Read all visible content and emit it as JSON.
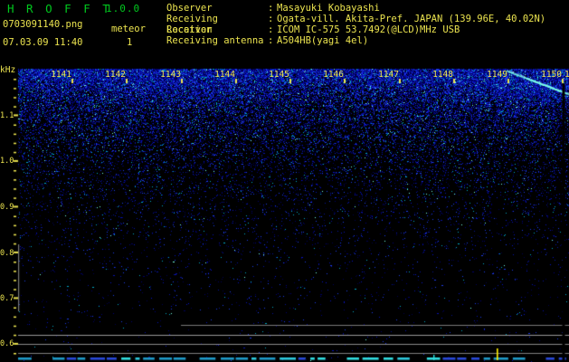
{
  "header": {
    "app_title": "H R O F F T",
    "app_version": "1.0.0",
    "filename": "0703091140.png",
    "mode": "meteor",
    "datetime": "07.03.09 11:40",
    "count": "1",
    "info_rows": [
      {
        "label": "Observer",
        "sep": ":",
        "value": "Masayuki Kobayashi"
      },
      {
        "label": "Receiving Location",
        "sep": ":",
        "value": "Ogata-vill. Akita-Pref. JAPAN (139.96E, 40.02N)"
      },
      {
        "label": "Receiver",
        "sep": ":",
        "value": "ICOM IC-575 53.7492(@LCD)MHz USB"
      },
      {
        "label": "Receiving antenna",
        "sep": ":",
        "value": "A504HB(yagi 4el)"
      }
    ]
  },
  "plot": {
    "freq_axis": {
      "unit": "kHz",
      "labels": [
        "1.1",
        "1.0",
        "0.9",
        "0.8",
        "0.7",
        "0.6"
      ]
    },
    "time_axis": {
      "labels": [
        "1141",
        "1142",
        "1143",
        "1144",
        "1145",
        "1146",
        "1147",
        "1148",
        "1149",
        "1150"
      ],
      "partial_next_label": "1"
    },
    "colors": {
      "text_yellow": "#ece44f",
      "title_green": "#00c81e",
      "noise_blue": "#2030e0",
      "noise_cyan": "#00aac8",
      "streak_cyan": "#78ffe8",
      "grid_gray": "#8a8a8a",
      "marker_yellow": "#ffee00",
      "bottom_dash_cyan": "#2cc8dc"
    }
  }
}
